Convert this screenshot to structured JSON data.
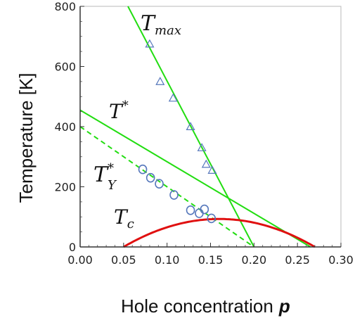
{
  "chart_data": {
    "type": "scatter",
    "xlabel": "Hole concentration",
    "xlabel_symbol": "p",
    "ylabel": "Temperature [K]",
    "xlim": [
      0.0,
      0.3
    ],
    "ylim": [
      0,
      800
    ],
    "x_ticks": [
      "0.00",
      "0.05",
      "0.10",
      "0.15",
      "0.20",
      "0.25",
      "0.30"
    ],
    "y_ticks": [
      "0",
      "200",
      "400",
      "600",
      "800"
    ],
    "grid": false,
    "legend": "none",
    "colors": {
      "green": "#22dd11",
      "red": "#e01010",
      "markers": "#5577bb"
    },
    "curves": {
      "tmax_line": {
        "x": [
          0.055,
          0.2
        ],
        "y": [
          800,
          0
        ],
        "style": "solid"
      },
      "tstar_line": {
        "x": [
          0.0,
          0.265
        ],
        "y": [
          455,
          0
        ],
        "style": "solid"
      },
      "tstar_y_line": {
        "x": [
          0.0,
          0.2
        ],
        "y": [
          400,
          0
        ],
        "style": "dashed"
      },
      "tc_dome": {
        "x_min": 0.05,
        "x_max": 0.27,
        "peak": 93,
        "style": "solid"
      }
    },
    "triangles": {
      "x": [
        0.08,
        0.092,
        0.107,
        0.127,
        0.14,
        0.145,
        0.152
      ],
      "y": [
        675,
        550,
        495,
        400,
        330,
        275,
        255
      ]
    },
    "circles": {
      "x": [
        0.072,
        0.081,
        0.091,
        0.108,
        0.127,
        0.137,
        0.143,
        0.151
      ],
      "y": [
        258,
        230,
        210,
        173,
        122,
        112,
        125,
        95
      ]
    },
    "labels": {
      "tmax": {
        "base": "T",
        "sub": "max",
        "sup": ""
      },
      "tstar": {
        "base": "T",
        "sub": "",
        "sup": "*"
      },
      "tstar_y": {
        "base": "T",
        "sub": "Y",
        "sup": "*"
      },
      "tc": {
        "base": "T",
        "sub": "c",
        "sup": ""
      }
    }
  }
}
